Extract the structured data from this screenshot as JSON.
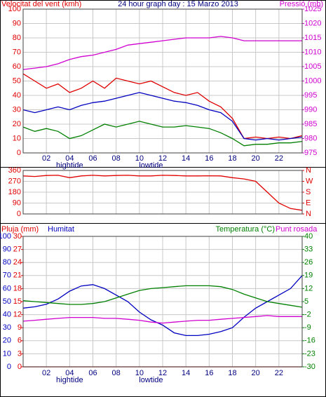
{
  "chart_data": [
    {
      "type": "line",
      "title": "24 hour graph day : 15 Marzo 2013",
      "ylabel": "Velocitat del vent (kmh)",
      "y2label": "Pressió (mb)",
      "x": [
        0,
        1,
        2,
        3,
        4,
        5,
        6,
        7,
        8,
        9,
        10,
        11,
        12,
        13,
        14,
        15,
        16,
        17,
        18,
        19,
        20,
        21,
        22,
        23,
        24
      ],
      "xlim": [
        0,
        24
      ],
      "xticks": [
        {
          "value": 2,
          "label": "02"
        },
        {
          "value": 4,
          "label": "04"
        },
        {
          "value": 6,
          "label": "06"
        },
        {
          "value": 8,
          "label": "08"
        },
        {
          "value": 10,
          "label": "10"
        },
        {
          "value": 12,
          "label": "12"
        },
        {
          "value": 14,
          "label": "14"
        },
        {
          "value": 16,
          "label": "16"
        },
        {
          "value": 18,
          "label": "18"
        },
        {
          "value": 20,
          "label": "20"
        },
        {
          "value": 22,
          "label": "22"
        }
      ],
      "ylim": [
        0,
        100
      ],
      "yticks": [
        0,
        10,
        20,
        30,
        40,
        50,
        60,
        70,
        80,
        90,
        100
      ],
      "ycolor": "#e00000",
      "y2lim": [
        975,
        1025
      ],
      "y2ticks": [
        975,
        980,
        985,
        990,
        995,
        1000,
        1005,
        1010,
        1015,
        1020,
        1025
      ],
      "y2color": "#d000d0",
      "grid": true,
      "annotations": [
        {
          "text": "hightide",
          "x": 4
        },
        {
          "text": "lowtide",
          "x": 11
        }
      ],
      "series": [
        {
          "color": "#e00000",
          "values": [
            55,
            50,
            45,
            48,
            42,
            45,
            50,
            45,
            52,
            50,
            48,
            50,
            46,
            42,
            40,
            42,
            36,
            32,
            24,
            10,
            11,
            10,
            11,
            10,
            12
          ]
        },
        {
          "color": "#0000c0",
          "values": [
            30,
            28,
            30,
            32,
            30,
            33,
            35,
            36,
            38,
            40,
            42,
            40,
            38,
            36,
            35,
            33,
            30,
            28,
            22,
            10,
            9,
            10,
            9,
            10,
            11
          ]
        },
        {
          "color": "#008000",
          "values": [
            18,
            15,
            17,
            15,
            10,
            12,
            16,
            20,
            18,
            20,
            22,
            20,
            18,
            18,
            19,
            18,
            17,
            14,
            10,
            5,
            6,
            6,
            7,
            7,
            8
          ]
        },
        {
          "color": "#d000d0",
          "axis": "y2",
          "values": [
            1004,
            1004.5,
            1005,
            1006,
            1007.5,
            1008.5,
            1009,
            1010,
            1011,
            1012.5,
            1013,
            1013.5,
            1014,
            1014.5,
            1015,
            1015,
            1015,
            1015.5,
            1015,
            1014,
            1014,
            1014,
            1014,
            1014,
            1014
          ]
        }
      ]
    },
    {
      "type": "line",
      "x": [
        0,
        1,
        2,
        3,
        4,
        5,
        6,
        7,
        8,
        9,
        10,
        11,
        12,
        13,
        14,
        15,
        16,
        17,
        18,
        19,
        20,
        21,
        22,
        23,
        24
      ],
      "xlim": [
        0,
        24
      ],
      "xticks": [
        2,
        4,
        6,
        8,
        10,
        12,
        14,
        16,
        18,
        20,
        22
      ],
      "xtick_labels": false,
      "ylim": [
        0,
        360
      ],
      "yticks": [
        0,
        90,
        180,
        270,
        360
      ],
      "ycolor": "#e00000",
      "y2lim": [
        0,
        360
      ],
      "y2ticks": [
        {
          "value": 0,
          "label": "N"
        },
        {
          "value": 90,
          "label": "E"
        },
        {
          "value": 180,
          "label": "S"
        },
        {
          "value": 270,
          "label": "W"
        },
        {
          "value": 360,
          "label": "N"
        }
      ],
      "y2color": "#e00000",
      "grid": true,
      "series": [
        {
          "color": "#e00000",
          "values": [
            315,
            310,
            318,
            320,
            300,
            315,
            320,
            315,
            318,
            320,
            315,
            315,
            320,
            318,
            315,
            315,
            316,
            315,
            300,
            290,
            270,
            180,
            90,
            45,
            30
          ]
        }
      ]
    },
    {
      "type": "line",
      "x": [
        0,
        1,
        2,
        3,
        4,
        5,
        6,
        7,
        8,
        9,
        10,
        11,
        12,
        13,
        14,
        15,
        16,
        17,
        18,
        19,
        20,
        21,
        22,
        23,
        24
      ],
      "xlim": [
        0,
        24
      ],
      "xticks": [
        {
          "value": 2,
          "label": "02"
        },
        {
          "value": 4,
          "label": "04"
        },
        {
          "value": 6,
          "label": "06"
        },
        {
          "value": 8,
          "label": "08"
        },
        {
          "value": 10,
          "label": "10"
        },
        {
          "value": 12,
          "label": "12"
        },
        {
          "value": 14,
          "label": "14"
        },
        {
          "value": 16,
          "label": "16"
        },
        {
          "value": 18,
          "label": "18"
        },
        {
          "value": 20,
          "label": "20"
        },
        {
          "value": 22,
          "label": "22"
        }
      ],
      "ylim": [
        0,
        100
      ],
      "yticks": [
        0,
        10,
        20,
        30,
        40,
        50,
        60,
        70,
        80,
        90,
        100
      ],
      "ycolor": "#0000c0",
      "y2lim": [
        0,
        30
      ],
      "y2ticks": [
        0,
        3,
        6,
        9,
        12,
        15,
        18,
        21,
        24,
        27,
        30
      ],
      "y2color": "#e00000",
      "y3lim": [
        -30,
        40
      ],
      "y3ticks": [
        -30,
        -23,
        -16,
        -9,
        -2,
        5,
        12,
        19,
        26,
        33,
        40
      ],
      "y3color": "#008000",
      "grid": true,
      "annotations": [
        {
          "text": "hightide",
          "x": 4
        },
        {
          "text": "lowtide",
          "x": 11
        }
      ],
      "series": [
        {
          "name": "Pluja (mm)",
          "color": "#e00000",
          "axis": "y2",
          "values": [
            0,
            0,
            0,
            0,
            0,
            0,
            0,
            0,
            0,
            0,
            0,
            0,
            0,
            0,
            0,
            0,
            0,
            0,
            0,
            0,
            0,
            0,
            0,
            0,
            0
          ]
        },
        {
          "name": "Humitat",
          "color": "#0000c0",
          "values": [
            45,
            46,
            48,
            52,
            58,
            62,
            63,
            60,
            55,
            50,
            42,
            36,
            32,
            26,
            24,
            24,
            25,
            27,
            30,
            38,
            45,
            50,
            55,
            60,
            70
          ]
        },
        {
          "name": "Temperatura (°C)",
          "color": "#008000",
          "axis": "y3",
          "values": [
            5.5,
            5,
            4.5,
            4,
            3.5,
            3.5,
            4,
            5,
            7,
            9,
            11,
            12,
            12.5,
            13,
            13.5,
            13.5,
            13.5,
            13,
            11.5,
            9,
            7,
            5,
            4,
            3,
            2
          ]
        },
        {
          "name": "Punt rosada",
          "color": "#d000d0",
          "axis": "y3",
          "values": [
            -5.5,
            -5,
            -4.5,
            -4,
            -3.5,
            -3.5,
            -3.5,
            -4,
            -4,
            -4.5,
            -5,
            -6,
            -6.5,
            -6,
            -5.5,
            -5,
            -5,
            -4.5,
            -4,
            -3.5,
            -3,
            -2.5,
            -3,
            -3,
            -3
          ]
        }
      ]
    }
  ]
}
